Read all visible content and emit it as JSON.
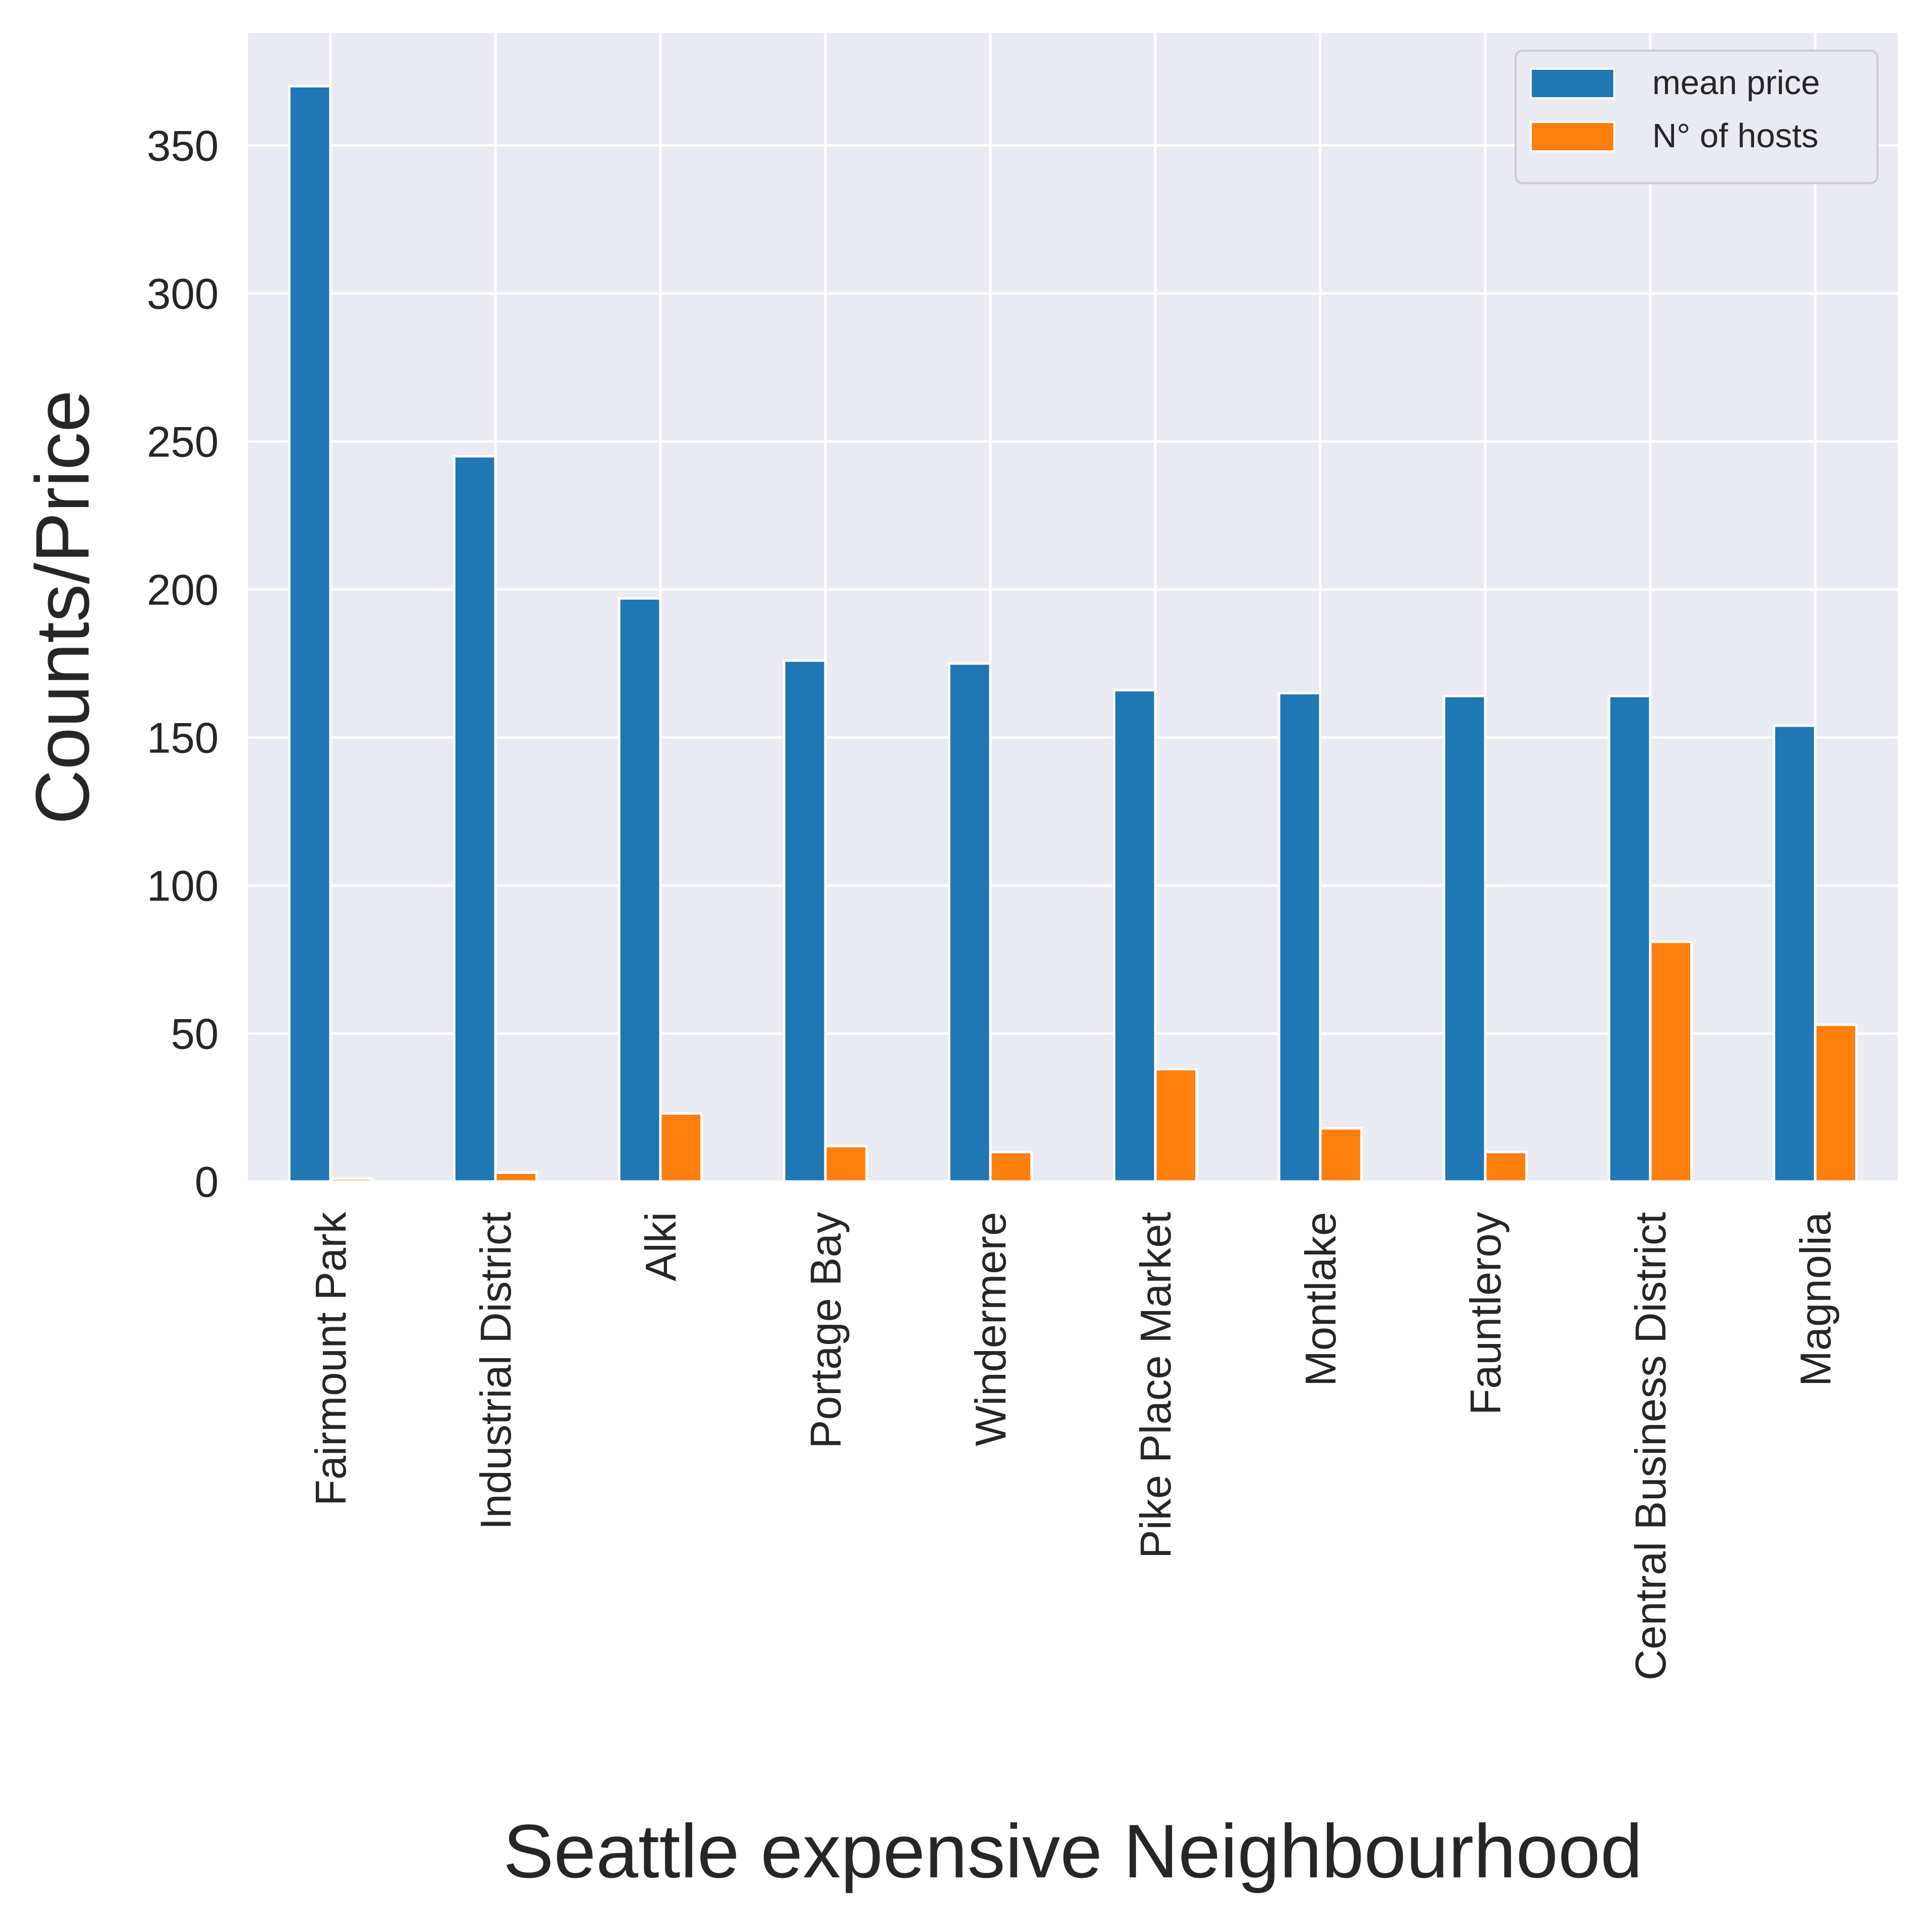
{
  "chart_data": {
    "type": "bar",
    "xlabel": "Seattle expensive Neighbourhood",
    "ylabel": "Counts/Price",
    "categories": [
      "Fairmount Park",
      "Industrial District",
      "Alki",
      "Portage Bay",
      "Windermere",
      "Pike Place Market",
      "Montlake",
      "Fauntleroy",
      "Central Business District",
      "Magnolia"
    ],
    "series": [
      {
        "name": "mean price",
        "color": "#1f77b4",
        "values": [
          370,
          245,
          197,
          176,
          175,
          166,
          165,
          164,
          164,
          154
        ]
      },
      {
        "name": "N° of hosts",
        "color": "#ff7f0e",
        "values": [
          1,
          3,
          23,
          12,
          10,
          38,
          18,
          10,
          81,
          53
        ]
      }
    ],
    "ylim": [
      0,
      388
    ],
    "yticks": [
      "0",
      "50",
      "100",
      "150",
      "200",
      "250",
      "300",
      "350"
    ],
    "ytick_values": [
      0,
      50,
      100,
      150,
      200,
      250,
      300,
      350
    ],
    "grid": true,
    "legend_position": "top-right",
    "background": "#eaeaf2"
  }
}
